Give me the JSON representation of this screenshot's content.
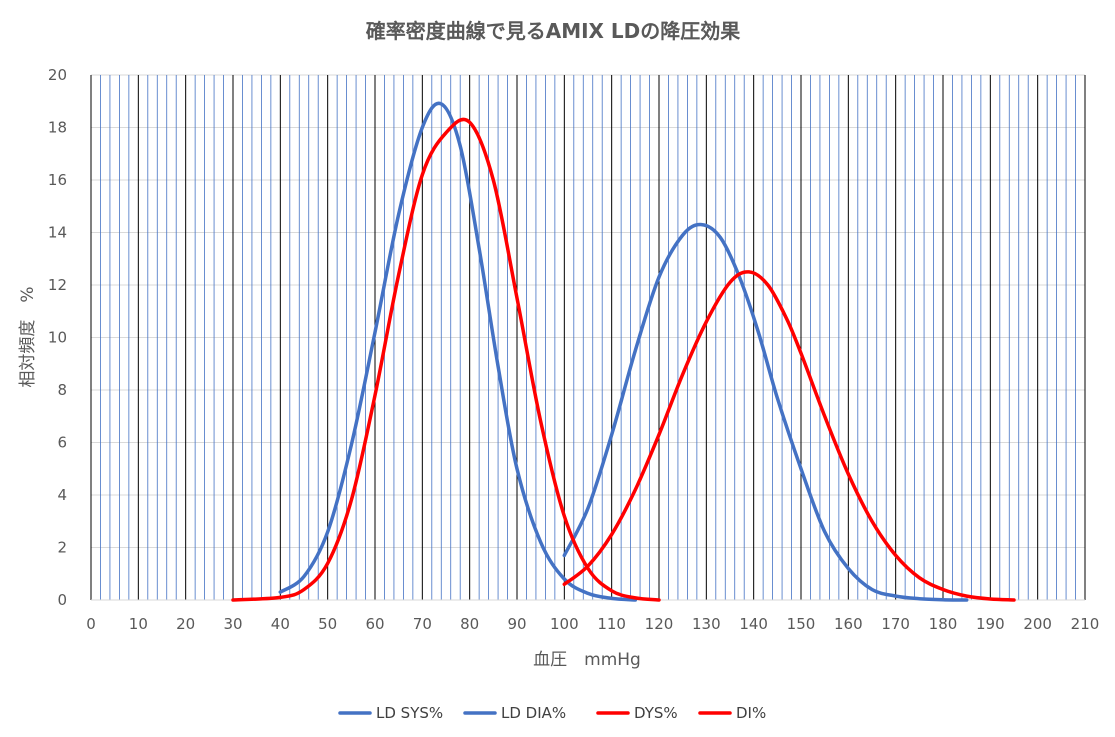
{
  "chart_data": {
    "type": "line",
    "title": "確率密度曲線で見るAMIX LDの降圧効果",
    "xlabel": "血圧　mmHg",
    "ylabel": "相対頻度　%",
    "xlim": [
      0,
      210
    ],
    "ylim": [
      0,
      20
    ],
    "x_ticks": [
      0,
      10,
      20,
      30,
      40,
      50,
      60,
      70,
      80,
      90,
      100,
      110,
      120,
      130,
      140,
      150,
      160,
      170,
      180,
      190,
      200,
      210
    ],
    "y_ticks": [
      0,
      2,
      4,
      6,
      8,
      10,
      12,
      14,
      16,
      18,
      20
    ],
    "grid": true,
    "legend_position": "bottom",
    "series": [
      {
        "name": "LD SYS%",
        "color": "#4472C4",
        "x": [
          100,
          105,
          110,
          115,
          120,
          125,
          129,
          133,
          137,
          141,
          145,
          150,
          155,
          160,
          165,
          170,
          175,
          180,
          185
        ],
        "values": [
          1.7,
          3.5,
          6.3,
          9.5,
          12.3,
          13.9,
          14.3,
          13.8,
          12.3,
          10.2,
          7.7,
          5.0,
          2.6,
          1.2,
          0.4,
          0.15,
          0.05,
          0.01,
          0
        ]
      },
      {
        "name": "LD DIA%",
        "color": "#4472C4",
        "x": [
          40,
          45,
          50,
          55,
          60,
          65,
          70,
          74,
          78,
          82,
          86,
          90,
          95,
          100,
          105,
          110,
          115
        ],
        "values": [
          0.3,
          0.9,
          2.6,
          5.9,
          10.2,
          14.7,
          18.0,
          18.9,
          17.3,
          13.4,
          8.9,
          5.0,
          2.2,
          0.8,
          0.25,
          0.06,
          0
        ]
      },
      {
        "name": "DYS%",
        "color": "#FF0000",
        "x": [
          100,
          105,
          110,
          115,
          120,
          125,
          130,
          135,
          139,
          143,
          147,
          150,
          155,
          160,
          165,
          170,
          175,
          180,
          185,
          190,
          195
        ],
        "values": [
          0.6,
          1.3,
          2.5,
          4.2,
          6.3,
          8.6,
          10.6,
          12.1,
          12.5,
          12.0,
          10.7,
          9.4,
          7.0,
          4.8,
          3.0,
          1.7,
          0.85,
          0.4,
          0.15,
          0.04,
          0
        ]
      },
      {
        "name": "DI%",
        "color": "#FF0000",
        "x": [
          30,
          40,
          45,
          50,
          55,
          60,
          65,
          70,
          75,
          80,
          85,
          90,
          95,
          100,
          105,
          110,
          115,
          120
        ],
        "values": [
          0,
          0.1,
          0.4,
          1.4,
          3.8,
          7.8,
          12.4,
          16.2,
          17.8,
          18.2,
          16.0,
          11.5,
          6.8,
          3.2,
          1.2,
          0.35,
          0.08,
          0
        ]
      }
    ]
  }
}
